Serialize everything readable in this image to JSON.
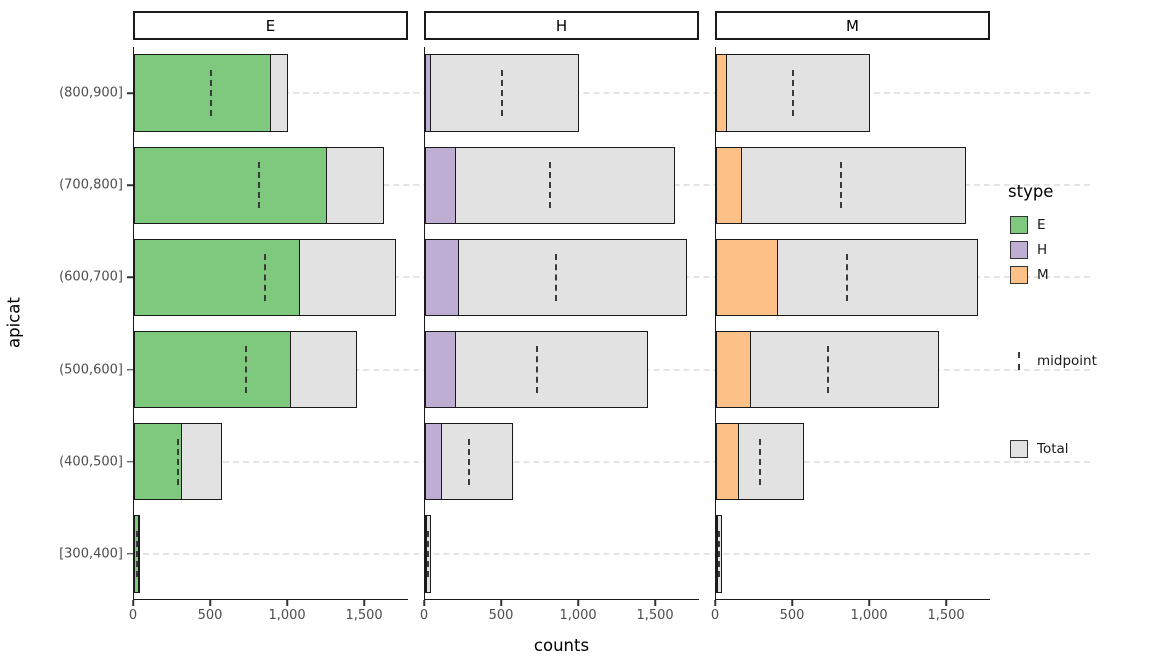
{
  "chart_data": {
    "type": "bar",
    "orientation": "horizontal",
    "xlabel": "counts",
    "ylabel": "apicat",
    "facet_variable": "stype",
    "categories": [
      "(800,900]",
      "(700,800]",
      "(600,700]",
      "(500,600]",
      "(400,500]",
      "[300,400]"
    ],
    "facets": [
      {
        "label": "E",
        "color": "#7fc97f",
        "values": [
          890,
          1250,
          1075,
          1020,
          310,
          30
        ]
      },
      {
        "label": "H",
        "color": "#beaed4",
        "values": [
          40,
          200,
          220,
          200,
          110,
          5
        ]
      },
      {
        "label": "M",
        "color": "#fdc086",
        "values": [
          70,
          170,
          405,
          230,
          150,
          5
        ]
      }
    ],
    "totals": [
      1000,
      1620,
      1700,
      1450,
      570,
      40
    ],
    "midpoints": [
      500,
      810,
      850,
      725,
      285,
      20
    ],
    "x_ticks": [
      0,
      500,
      1000,
      1500
    ],
    "x_tick_labels": [
      "0",
      "500",
      "1,000",
      "1,500"
    ],
    "xlim": [
      0,
      1785
    ],
    "grid": "dashed-horizontal",
    "legend_position": "right"
  },
  "legend": {
    "title": "stype",
    "fill_items": [
      {
        "label": "E",
        "color": "#7fc97f"
      },
      {
        "label": "H",
        "color": "#beaed4"
      },
      {
        "label": "M",
        "color": "#fdc086"
      }
    ],
    "midpoint_label": "midpoint",
    "total_label": "Total",
    "total_color": "#e2e2e2"
  },
  "colors": {
    "bar_border": "#1a1a1a",
    "gridline": "#e4e4e4",
    "axis_text": "#4d4d4d"
  }
}
